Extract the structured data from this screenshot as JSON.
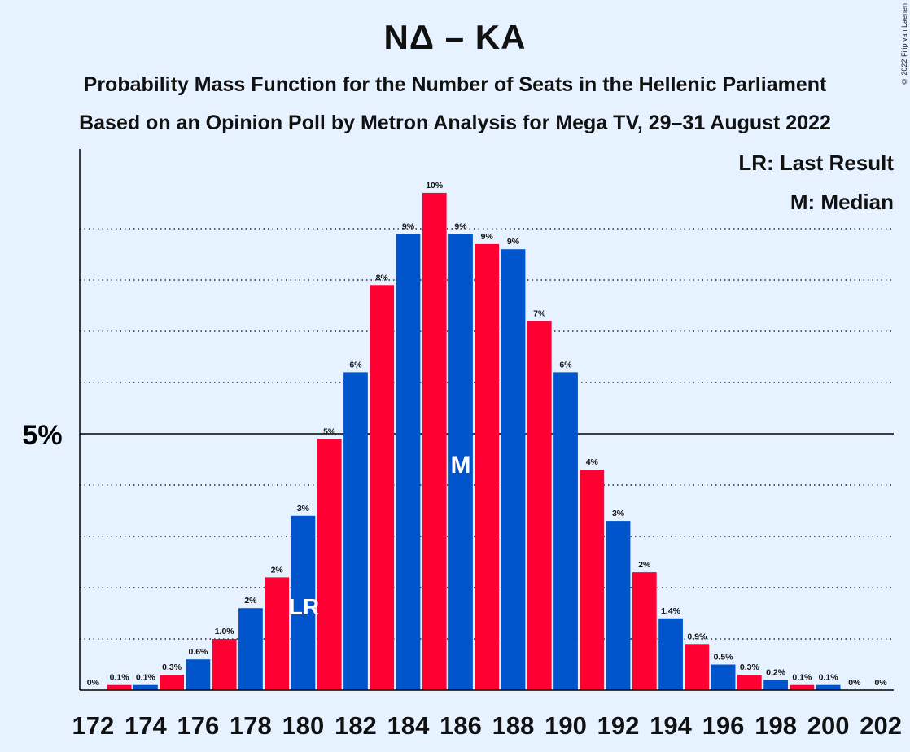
{
  "title": "NΔ – KA",
  "subtitle1": "Probability Mass Function for the Number of Seats in the Hellenic Parliament",
  "subtitle2": "Based on an Opinion Poll by Metron Analysis for Mega TV, 29–31 August 2022",
  "copyright": "© 2022 Filip van Laenen",
  "legend": {
    "last_result": "LR: Last Result",
    "median": "M: Median"
  },
  "colors": {
    "blue": "#0055CC",
    "red": "#FF0033",
    "background": "#E6F2FF"
  },
  "chart_data": {
    "type": "bar",
    "ylabel_tick": "5%",
    "ylim": [
      0,
      10.5
    ],
    "x": [
      172,
      173,
      174,
      175,
      176,
      177,
      178,
      179,
      180,
      181,
      182,
      183,
      184,
      185,
      186,
      187,
      188,
      189,
      190,
      191,
      192,
      193,
      194,
      195,
      196,
      197,
      198,
      199,
      200,
      201,
      202
    ],
    "values": [
      0.0,
      0.1,
      0.1,
      0.3,
      0.6,
      1.0,
      1.6,
      2.2,
      3.4,
      4.9,
      6.2,
      7.9,
      8.9,
      9.7,
      8.9,
      8.7,
      8.6,
      7.2,
      6.2,
      4.3,
      3.3,
      2.3,
      1.4,
      0.9,
      0.5,
      0.3,
      0.2,
      0.1,
      0.1,
      0.0,
      0.0
    ],
    "labels": [
      "0%",
      "0.1%",
      "0.1%",
      "0.3%",
      "0.6%",
      "1.0%",
      "2%",
      "2%",
      "3%",
      "5%",
      "6%",
      "8%",
      "9%",
      "10%",
      "9%",
      "9%",
      "9%",
      "7%",
      "6%",
      "4%",
      "3%",
      "2%",
      "1.4%",
      "0.9%",
      "0.5%",
      "0.3%",
      "0.2%",
      "0.1%",
      "0.1%",
      "0%",
      "0%"
    ],
    "xticks": [
      172,
      174,
      176,
      178,
      180,
      182,
      184,
      186,
      188,
      190,
      192,
      194,
      196,
      198,
      200,
      202
    ],
    "last_result": {
      "seat": 180,
      "label": "LR"
    },
    "median": {
      "seat": 186,
      "label": "M"
    }
  }
}
